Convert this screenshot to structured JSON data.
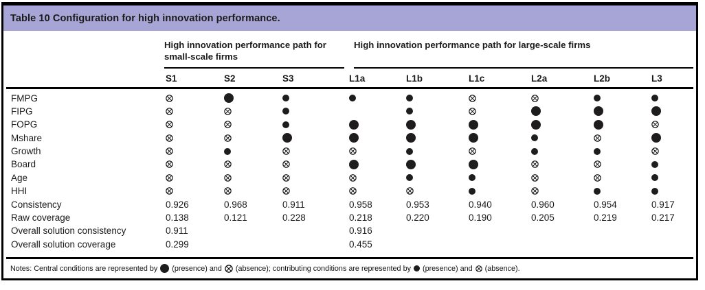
{
  "title": "Table 10 Configuration for high innovation performance.",
  "colors": {
    "title_bg": "#a6a5d5",
    "border": "#000000",
    "symbol": "#1f1c1d"
  },
  "groups": [
    {
      "id": "small-scale",
      "label": "High innovation performance path for small-scale firms",
      "columns": [
        "S1",
        "S2",
        "S3"
      ]
    },
    {
      "id": "large-scale",
      "label": "High innovation performance path for large-scale firms",
      "columns": [
        "L1a",
        "L1b",
        "L1c",
        "L2a",
        "L2b",
        "L3"
      ]
    }
  ],
  "columns": [
    "S1",
    "S2",
    "S3",
    "L1a",
    "L1b",
    "L1c",
    "L2a",
    "L2b",
    "L3"
  ],
  "symbol_legend": {
    "CP": "central-condition-presence-large-filled-circle",
    "cp": "contributing-condition-presence-small-filled-circle",
    "CA": "central-condition-absence-crossed-circle",
    "ca": "contributing-condition-absence-crossed-circle"
  },
  "rows": [
    {
      "label": "FMPG",
      "cells": [
        "ca",
        "CP",
        "cp",
        "cp",
        "cp",
        "ca",
        "ca",
        "cp",
        "cp"
      ]
    },
    {
      "label": "FIPG",
      "cells": [
        "ca",
        "ca",
        "cp",
        "",
        "cp",
        "ca",
        "CP",
        "CP",
        "CP"
      ]
    },
    {
      "label": "FOPG",
      "cells": [
        "ca",
        "ca",
        "cp",
        "CP",
        "CP",
        "CP",
        "CP",
        "CP",
        "ca"
      ]
    },
    {
      "label": "Mshare",
      "cells": [
        "ca",
        "ca",
        "CP",
        "CP",
        "CP",
        "CP",
        "cp",
        "ca",
        "CP"
      ]
    },
    {
      "label": "Growth",
      "cells": [
        "ca",
        "cp",
        "ca",
        "ca",
        "cp",
        "ca",
        "cp",
        "cp",
        "ca"
      ]
    },
    {
      "label": "Board",
      "cells": [
        "ca",
        "ca",
        "ca",
        "CP",
        "CP",
        "CP",
        "ca",
        "ca",
        "cp"
      ]
    },
    {
      "label": "Age",
      "cells": [
        "ca",
        "ca",
        "ca",
        "ca",
        "cp",
        "cp",
        "ca",
        "ca",
        "cp"
      ]
    },
    {
      "label": "HHI",
      "cells": [
        "ca",
        "ca",
        "ca",
        "ca",
        "ca",
        "cp",
        "ca",
        "cp",
        "cp"
      ]
    }
  ],
  "stat_rows": [
    {
      "label": "Consistency",
      "values": [
        "0.926",
        "0.968",
        "0.911",
        "0.958",
        "0.953",
        "0.940",
        "0.960",
        "0.954",
        "0.917"
      ]
    },
    {
      "label": "Raw coverage",
      "values": [
        "0.138",
        "0.121",
        "0.228",
        "0.218",
        "0.220",
        "0.190",
        "0.205",
        "0.219",
        "0.217"
      ]
    },
    {
      "label": "Overall solution consistency",
      "values": [
        "0.911",
        "",
        "",
        "0.916",
        "",
        "",
        "",
        "",
        ""
      ]
    },
    {
      "label": "Overall solution coverage",
      "values": [
        "0.299",
        "",
        "",
        "0.455",
        "",
        "",
        "",
        "",
        ""
      ]
    }
  ],
  "notes_segments": [
    {
      "type": "text",
      "value": "Notes: Central conditions are represented by "
    },
    {
      "type": "symbol",
      "value": "CP"
    },
    {
      "type": "text",
      "value": " (presence) and "
    },
    {
      "type": "symbol",
      "value": "CA"
    },
    {
      "type": "text",
      "value": " (absence); contributing conditions are represented by "
    },
    {
      "type": "symbol",
      "value": "cp"
    },
    {
      "type": "text",
      "value": " (presence) and "
    },
    {
      "type": "symbol",
      "value": "ca"
    },
    {
      "type": "text",
      "value": " (absence)."
    }
  ]
}
